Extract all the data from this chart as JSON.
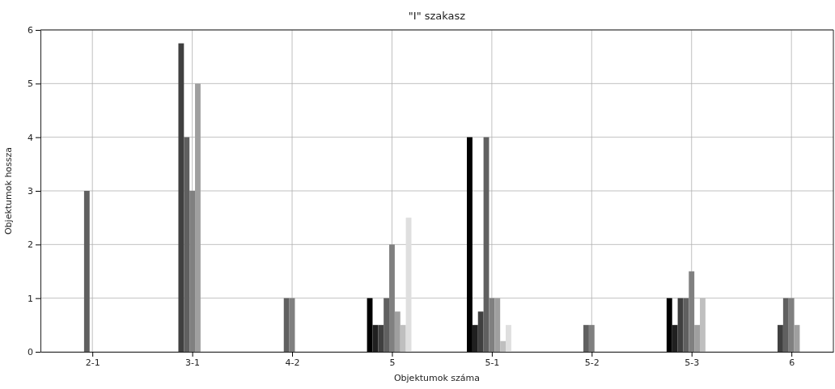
{
  "chart_data": {
    "type": "bar",
    "title": "\"I\" szakasz",
    "xlabel": "Objektumok száma",
    "ylabel": "Objektumok hossza",
    "categories": [
      "2-1",
      "3-1",
      "4-2",
      "5",
      "5-1",
      "5-2",
      "5-3",
      "6"
    ],
    "ylim": [
      0,
      6
    ],
    "yticks": [
      0,
      1,
      2,
      3,
      4,
      5,
      6
    ],
    "grid": true,
    "series": [
      {
        "color": "#000000",
        "values": [
          0,
          0,
          0,
          1,
          4,
          0,
          1,
          0
        ]
      },
      {
        "color": "#202020",
        "values": [
          0,
          0,
          0,
          0.5,
          0.5,
          0,
          0.5,
          0
        ]
      },
      {
        "color": "#404040",
        "values": [
          0,
          5.75,
          0,
          0.5,
          0.75,
          0,
          1,
          0.5
        ]
      },
      {
        "color": "#606060",
        "values": [
          3,
          4,
          1,
          1,
          4,
          0.5,
          1,
          1
        ]
      },
      {
        "color": "#808080",
        "values": [
          0,
          3,
          1,
          2,
          1,
          0.5,
          1.5,
          1
        ]
      },
      {
        "color": "#9f9f9f",
        "values": [
          0,
          5,
          0,
          0.75,
          1,
          0,
          0.5,
          0.5
        ]
      },
      {
        "color": "#bfbfbf",
        "values": [
          0,
          0,
          0,
          0.5,
          0.2,
          0,
          1,
          0
        ]
      },
      {
        "color": "#dfdfdf",
        "values": [
          0,
          0,
          0,
          2.5,
          0.5,
          0,
          0,
          0
        ]
      },
      {
        "color": "#ffffff",
        "values": [
          null,
          null,
          null,
          null,
          null,
          null,
          null,
          null
        ]
      }
    ]
  }
}
